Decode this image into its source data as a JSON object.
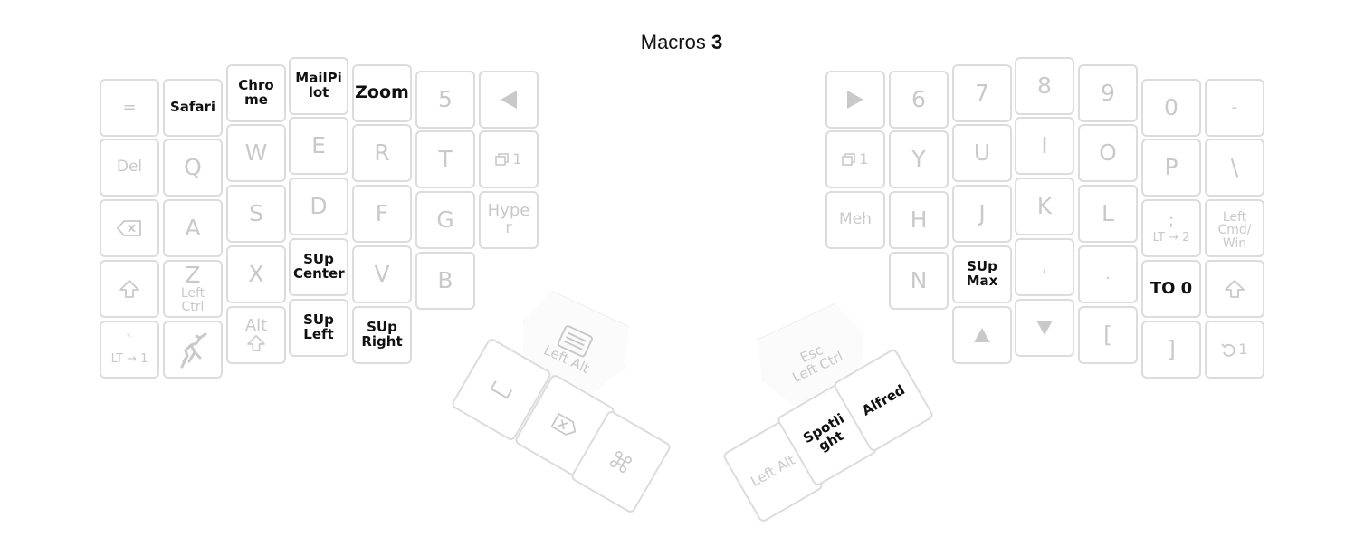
{
  "title": {
    "prefix": "Macros",
    "layer": "3"
  },
  "colors": {
    "key_border": "#dcdcdc",
    "faint_text": "#c9c9c9",
    "strong_text": "#111111"
  },
  "left": {
    "row1": [
      "=",
      "Safari",
      "Chrome",
      "MailPilot",
      "Zoom",
      "5",
      "left-triangle-icon"
    ],
    "row2": [
      "Del",
      "Q",
      "W",
      "E",
      "R",
      "T",
      "1"
    ],
    "row3": [
      "backspace-icon",
      "A",
      "S",
      "D",
      "F",
      "G",
      "Hyper"
    ],
    "row4": {
      "shift": "shift-icon",
      "z": "Z",
      "z_sub": "Left Ctrl",
      "x": "X",
      "sup_center": "SUp Center",
      "v": "V",
      "b": "B"
    },
    "row5": {
      "grave": "`",
      "grave_sub": "LT → 1",
      "alt": "Alt",
      "sup_left": "SUp Left",
      "sup_right": "SUp Right"
    },
    "thumb": {
      "tall": "Left Alt",
      "space": "space-icon",
      "delete": "delete-icon",
      "cmd": "command-icon"
    }
  },
  "right": {
    "row1": [
      "right-triangle-icon",
      "6",
      "7",
      "8",
      "9",
      "0",
      "-"
    ],
    "row2": [
      "1",
      "Y",
      "U",
      "I",
      "O",
      "P",
      "\\"
    ],
    "row3": {
      "meh": "Meh",
      "h": "H",
      "j": "J",
      "k": "K",
      "l": "L",
      "semi": ";",
      "semi_sub": "LT → 2",
      "quote": "'",
      "quote_sub": "Left Cmd/ Win"
    },
    "row4": {
      "n": "N",
      "sup_max": "SUp Max",
      "comma": ",",
      "dot": ".",
      "to0": "TO 0",
      "shift": "shift-icon"
    },
    "row5": {
      "up": "up-icon",
      "down": "down-icon",
      "lbracket": "[",
      "rbracket": "]",
      "undo": "1"
    },
    "thumb": {
      "tall_top": "Esc",
      "tall_bottom": "Left Ctrl",
      "left_alt": "Left Alt",
      "spotlight": "Spotlight",
      "alfred": "Alfred"
    }
  }
}
